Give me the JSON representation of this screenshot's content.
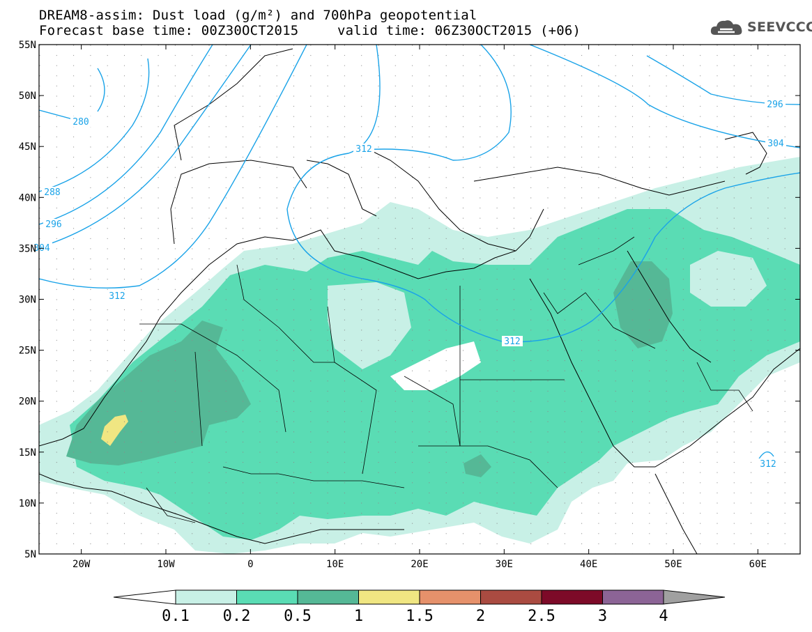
{
  "header": {
    "title_line1": "DREAM8-assim: Dust load (g/m²) and 700hPa geopotential",
    "base_time": "Forecast base time: 00Z30OCT2015",
    "valid_time": "valid time: 06Z30OCT2015 (+06)"
  },
  "logo": {
    "text": "SEEVCCC",
    "icon": "cloud-icon",
    "color": "#555555"
  },
  "map": {
    "lon_labels": [
      "20W",
      "10W",
      "0",
      "10E",
      "20E",
      "30E",
      "40E",
      "50E",
      "60E"
    ],
    "lat_labels": [
      "55N",
      "50N",
      "45N",
      "40N",
      "35N",
      "30N",
      "25N",
      "20N",
      "15N",
      "10N",
      "5N"
    ],
    "contour_labels": [
      "280",
      "288",
      "296",
      "304",
      "312",
      "312",
      "312",
      "296",
      "304",
      "312"
    ],
    "contour_color": "#1aa3e8"
  },
  "colorbar": {
    "labels": [
      "0.1",
      "0.2",
      "0.5",
      "1",
      "1.5",
      "2",
      "2.5",
      "3",
      "4"
    ],
    "colors": [
      "#ffffff",
      "#c8f0e6",
      "#5adcb4",
      "#55b896",
      "#f0e682",
      "#e6916b",
      "#aa4b41",
      "#7d0a28",
      "#8c6496",
      "#a0a0a0"
    ]
  }
}
